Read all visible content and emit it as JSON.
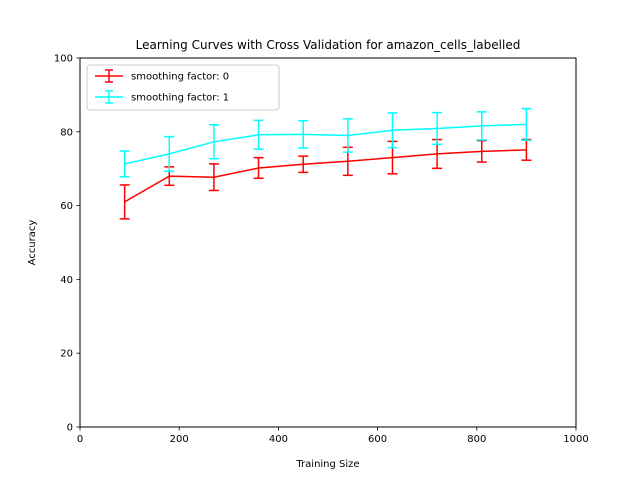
{
  "chart_data": {
    "type": "line",
    "title": "Learning Curves with Cross Validation for amazon_cells_labelled",
    "xlabel": "Training Size",
    "ylabel": "Accuracy",
    "xlim": [
      0,
      1000
    ],
    "ylim": [
      0,
      100
    ],
    "xticks": [
      0,
      200,
      400,
      600,
      800,
      1000
    ],
    "yticks": [
      0,
      20,
      40,
      60,
      80,
      100
    ],
    "grid": false,
    "legend_position": "upper-left",
    "x": [
      90,
      180,
      270,
      360,
      450,
      540,
      630,
      720,
      810,
      900
    ],
    "series": [
      {
        "name": "smoothing factor: 0",
        "color": "#ff0000",
        "values": [
          61.0,
          68.0,
          67.7,
          70.2,
          71.2,
          72.0,
          73.0,
          74.0,
          74.7,
          75.1
        ],
        "errors": [
          4.6,
          2.5,
          3.6,
          2.8,
          2.2,
          3.8,
          4.4,
          3.9,
          2.9,
          2.8
        ]
      },
      {
        "name": "smoothing factor: 1",
        "color": "#00ffff",
        "values": [
          71.3,
          74.0,
          77.3,
          79.2,
          79.3,
          79.0,
          80.4,
          80.9,
          81.6,
          82.0
        ],
        "errors": [
          3.5,
          4.7,
          4.6,
          3.9,
          3.7,
          4.5,
          4.7,
          4.3,
          3.8,
          4.3
        ]
      }
    ]
  }
}
